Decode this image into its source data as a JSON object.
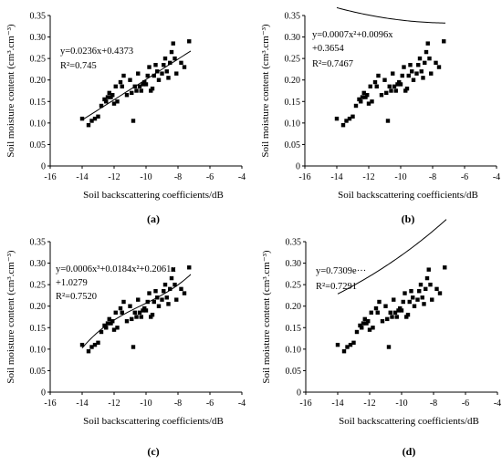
{
  "chart_data": [
    {
      "type": "scatter",
      "panel_label": "(a)",
      "xlabel": "Soil backscattering coefficients/dB",
      "ylabel": "Soil moisture content (cm³.cm⁻³)",
      "xlim": [
        -16,
        -4
      ],
      "ylim": [
        0,
        0.35
      ],
      "xticks": [
        "-16",
        "-14",
        "-12",
        "-10",
        "-8",
        "-6",
        "-4"
      ],
      "yticks": [
        "0",
        "0.05",
        "0.10",
        "0.15",
        "0.20",
        "0.25",
        "0.30",
        "0.35"
      ],
      "grid": false,
      "annotation_lines": [
        "y=0.0236x+0.4373",
        "R²=0.745"
      ],
      "fit": {
        "kind": "linear",
        "coef": [
          0.0236,
          0.4373
        ],
        "x_range": [
          -14,
          -7.2
        ]
      }
    },
    {
      "type": "scatter",
      "panel_label": "(b)",
      "xlabel": "Soil backscattering coefficients/dB",
      "ylabel": "Soil moisture content (cm³.cm⁻³)",
      "xlim": [
        -16,
        -4
      ],
      "ylim": [
        0,
        0.35
      ],
      "xticks": [
        "-16",
        "-14",
        "-12",
        "-10",
        "-8",
        "-6",
        "-4"
      ],
      "yticks": [
        "0",
        "0.05",
        "0.10",
        "0.15",
        "0.20",
        "0.25",
        "0.30",
        "0.35"
      ],
      "grid": false,
      "annotation_lines": [
        "y=0.0007x²+0.0096x",
        "+0.3654",
        "R²=0.7467"
      ],
      "fit": {
        "kind": "poly",
        "coef": [
          0.0007,
          0.0096,
          0.3654
        ],
        "x_range": [
          -14,
          -7.2
        ]
      }
    },
    {
      "type": "scatter",
      "panel_label": "(c)",
      "xlabel": "Soil backscattering coefficients/dB",
      "ylabel": "Soil moisture content (cm³.cm⁻³)",
      "xlim": [
        -16,
        -4
      ],
      "ylim": [
        0,
        0.35
      ],
      "xticks": [
        "-16",
        "-14",
        "-12",
        "-10",
        "-8",
        "-6",
        "-4"
      ],
      "yticks": [
        "0",
        "0.05",
        "0.10",
        "0.15",
        "0.20",
        "0.25",
        "0.30",
        "0.35"
      ],
      "grid": false,
      "annotation_lines": [
        "y=0.0006x³+0.0184x²+0.2061x",
        "+1.0279",
        "R²=0.7520"
      ],
      "fit": {
        "kind": "poly",
        "coef": [
          0.0006,
          0.0184,
          0.2061,
          1.0279
        ],
        "x_range": [
          -14,
          -7.2
        ]
      }
    },
    {
      "type": "scatter",
      "panel_label": "(d)",
      "xlabel": "Soil backscattering coefficients/dB",
      "ylabel": "Soil moisture content (cm³.cm⁻³)",
      "xlim": [
        -16,
        -4
      ],
      "ylim": [
        0,
        0.35
      ],
      "xticks": [
        "-16",
        "-14",
        "-12",
        "-10",
        "-8",
        "-6",
        "-4"
      ],
      "yticks": [
        "0",
        "0.05",
        "0.10",
        "0.15",
        "0.20",
        "0.25",
        "0.30",
        "0.35"
      ],
      "grid": false,
      "annotation_lines": [
        "y=0.7309e···",
        "R²=0.7291"
      ],
      "fit": {
        "kind": "exp",
        "coef": [
          0.7309,
          0.0831
        ],
        "x_range": [
          -14,
          -7.2
        ]
      }
    }
  ],
  "points": {
    "x": [
      -14.0,
      -13.6,
      -13.4,
      -13.2,
      -13.0,
      -12.8,
      -12.6,
      -12.5,
      -12.4,
      -12.3,
      -12.2,
      -12.1,
      -12.0,
      -11.9,
      -11.8,
      -11.6,
      -11.5,
      -11.4,
      -11.2,
      -11.0,
      -10.9,
      -10.8,
      -10.7,
      -10.6,
      -10.5,
      -10.4,
      -10.3,
      -10.2,
      -10.1,
      -10.0,
      -9.9,
      -9.8,
      -9.7,
      -9.6,
      -9.5,
      -9.4,
      -9.3,
      -9.2,
      -9.0,
      -8.9,
      -8.8,
      -8.7,
      -8.6,
      -8.5,
      -8.4,
      -8.3,
      -8.2,
      -8.1,
      -7.8,
      -7.6,
      -7.3
    ],
    "y": [
      0.11,
      0.095,
      0.105,
      0.11,
      0.115,
      0.14,
      0.155,
      0.15,
      0.16,
      0.17,
      0.16,
      0.165,
      0.145,
      0.185,
      0.15,
      0.195,
      0.185,
      0.21,
      0.165,
      0.2,
      0.17,
      0.105,
      0.185,
      0.175,
      0.215,
      0.185,
      0.175,
      0.19,
      0.195,
      0.19,
      0.21,
      0.23,
      0.175,
      0.18,
      0.21,
      0.235,
      0.22,
      0.2,
      0.215,
      0.235,
      0.25,
      0.22,
      0.205,
      0.24,
      0.265,
      0.285,
      0.25,
      0.215,
      0.24,
      0.23,
      0.29
    ]
  }
}
